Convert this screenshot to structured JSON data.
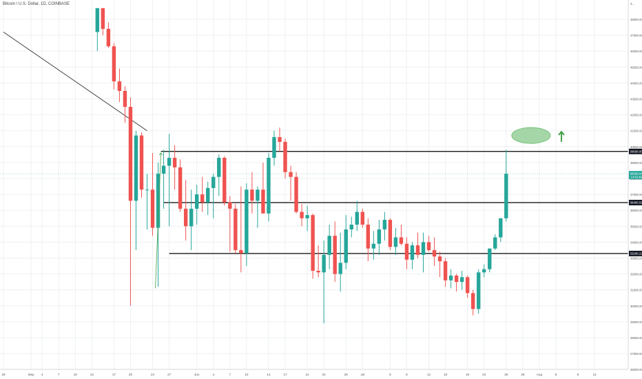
{
  "window": {
    "symbol_title": "Bitcoin / U.S. Dollar, 1D, COINBASE"
  },
  "chart_data": {
    "type": "candlestick",
    "title": "Bitcoin / U.S. Dollar, 1D, COINBASE",
    "xlabel": "",
    "ylabel": "",
    "ylim": [
      25000,
      48700
    ],
    "grid": true,
    "colors": {
      "up": "#26a69a",
      "down": "#ef5350",
      "grid": "#eef0f3",
      "line": "#000000",
      "trend": "#333333",
      "target": "#a5d6a7",
      "arrow": "#43a047"
    },
    "y_ticks": [
      "48000.00",
      "47000.00",
      "46000.00",
      "45000.00",
      "44000.00",
      "43000.00",
      "42000.00",
      "41000.00",
      "40000.00",
      "39000.00",
      "38000.00",
      "37000.00",
      "36000.00",
      "35000.00",
      "34000.00",
      "33000.00",
      "32000.00",
      "31000.00",
      "30000.00",
      "29000.00",
      "28000.00",
      "27000.00",
      "26000.00"
    ],
    "x_ticks": [
      {
        "day": 0,
        "label": "26"
      },
      {
        "day": 5,
        "label": "May"
      },
      {
        "day": 7,
        "label": "4"
      },
      {
        "day": 10,
        "label": "7"
      },
      {
        "day": 13,
        "label": "10"
      },
      {
        "day": 16,
        "label": "13"
      },
      {
        "day": 20,
        "label": "17"
      },
      {
        "day": 23,
        "label": "20"
      },
      {
        "day": 27,
        "label": "24"
      },
      {
        "day": 30,
        "label": "27"
      },
      {
        "day": 35,
        "label": "Jun"
      },
      {
        "day": 38,
        "label": "4"
      },
      {
        "day": 41,
        "label": "7"
      },
      {
        "day": 44,
        "label": "10"
      },
      {
        "day": 48,
        "label": "14"
      },
      {
        "day": 51,
        "label": "17"
      },
      {
        "day": 55,
        "label": "21"
      },
      {
        "day": 58,
        "label": "24"
      },
      {
        "day": 62,
        "label": "28"
      },
      {
        "day": 65,
        "label": "Jul"
      },
      {
        "day": 70,
        "label": "5"
      },
      {
        "day": 73,
        "label": "8"
      },
      {
        "day": 77,
        "label": "12"
      },
      {
        "day": 80,
        "label": "15"
      },
      {
        "day": 84,
        "label": "19"
      },
      {
        "day": 87,
        "label": "22"
      },
      {
        "day": 91,
        "label": "26"
      },
      {
        "day": 94,
        "label": "29"
      },
      {
        "day": 97,
        "label": "Aug"
      },
      {
        "day": 100,
        "label": "5"
      },
      {
        "day": 104,
        "label": "9"
      },
      {
        "day": 107,
        "label": "12"
      }
    ],
    "candles": [
      {
        "day": 17,
        "o": 47200,
        "h": 48700,
        "l": 46000,
        "c": 48700
      },
      {
        "day": 18,
        "o": 48700,
        "h": 48700,
        "l": 47000,
        "c": 47400
      },
      {
        "day": 19,
        "o": 47400,
        "h": 47800,
        "l": 46200,
        "c": 46300
      },
      {
        "day": 20,
        "o": 46300,
        "h": 46500,
        "l": 43600,
        "c": 44100
      },
      {
        "day": 21,
        "o": 44100,
        "h": 44900,
        "l": 42800,
        "c": 43500
      },
      {
        "day": 22,
        "o": 43500,
        "h": 43800,
        "l": 41500,
        "c": 42500
      },
      {
        "day": 23,
        "o": 42500,
        "h": 43100,
        "l": 30000,
        "c": 36600
      },
      {
        "day": 24,
        "o": 36600,
        "h": 41000,
        "l": 33500,
        "c": 40700
      },
      {
        "day": 25,
        "o": 40700,
        "h": 40900,
        "l": 36800,
        "c": 37300
      },
      {
        "day": 26,
        "o": 37300,
        "h": 38300,
        "l": 34800,
        "c": 37300
      },
      {
        "day": 27,
        "o": 37300,
        "h": 39600,
        "l": 34400,
        "c": 34900
      },
      {
        "day": 28,
        "o": 34900,
        "h": 39000,
        "l": 31200,
        "c": 38300
      },
      {
        "day": 29,
        "o": 38300,
        "h": 39800,
        "l": 36100,
        "c": 38800
      },
      {
        "day": 30,
        "o": 38800,
        "h": 40800,
        "l": 35000,
        "c": 39300
      },
      {
        "day": 31,
        "o": 39300,
        "h": 40100,
        "l": 37300,
        "c": 38700
      },
      {
        "day": 32,
        "o": 38700,
        "h": 39200,
        "l": 35900,
        "c": 36100
      },
      {
        "day": 33,
        "o": 36100,
        "h": 37900,
        "l": 34100,
        "c": 35000
      },
      {
        "day": 34,
        "o": 35000,
        "h": 37300,
        "l": 33500,
        "c": 36100
      },
      {
        "day": 35,
        "o": 36100,
        "h": 37600,
        "l": 35100,
        "c": 37000
      },
      {
        "day": 36,
        "o": 37000,
        "h": 38100,
        "l": 35900,
        "c": 36500
      },
      {
        "day": 37,
        "o": 36500,
        "h": 37800,
        "l": 35700,
        "c": 37400
      },
      {
        "day": 38,
        "o": 37400,
        "h": 38300,
        "l": 35500,
        "c": 38100
      },
      {
        "day": 39,
        "o": 38100,
        "h": 39500,
        "l": 36900,
        "c": 39300
      },
      {
        "day": 40,
        "o": 39300,
        "h": 39400,
        "l": 36300,
        "c": 36500
      },
      {
        "day": 41,
        "o": 36500,
        "h": 36900,
        "l": 33400,
        "c": 36100
      },
      {
        "day": 42,
        "o": 36100,
        "h": 36400,
        "l": 33300,
        "c": 33500
      },
      {
        "day": 43,
        "o": 33500,
        "h": 37500,
        "l": 32100,
        "c": 33300
      },
      {
        "day": 44,
        "o": 33300,
        "h": 37700,
        "l": 32500,
        "c": 37300
      },
      {
        "day": 45,
        "o": 37300,
        "h": 38400,
        "l": 35800,
        "c": 36600
      },
      {
        "day": 46,
        "o": 36600,
        "h": 37500,
        "l": 34900,
        "c": 37300
      },
      {
        "day": 47,
        "o": 37300,
        "h": 39000,
        "l": 35800,
        "c": 35800
      },
      {
        "day": 48,
        "o": 35800,
        "h": 39600,
        "l": 35300,
        "c": 39300
      },
      {
        "day": 49,
        "o": 39300,
        "h": 41000,
        "l": 38800,
        "c": 40600
      },
      {
        "day": 50,
        "o": 40600,
        "h": 41200,
        "l": 39700,
        "c": 40300
      },
      {
        "day": 51,
        "o": 40300,
        "h": 40500,
        "l": 38000,
        "c": 38400
      },
      {
        "day": 52,
        "o": 38400,
        "h": 38800,
        "l": 36600,
        "c": 38100
      },
      {
        "day": 53,
        "o": 38100,
        "h": 38400,
        "l": 35800,
        "c": 35900
      },
      {
        "day": 54,
        "o": 35900,
        "h": 36400,
        "l": 35000,
        "c": 35500
      },
      {
        "day": 55,
        "o": 35500,
        "h": 36300,
        "l": 34700,
        "c": 35700
      },
      {
        "day": 56,
        "o": 35700,
        "h": 35800,
        "l": 31700,
        "c": 32200
      },
      {
        "day": 57,
        "o": 32200,
        "h": 33800,
        "l": 31800,
        "c": 32100
      },
      {
        "day": 58,
        "o": 32100,
        "h": 34100,
        "l": 28900,
        "c": 33200
      },
      {
        "day": 59,
        "o": 33200,
        "h": 35100,
        "l": 32300,
        "c": 34400
      },
      {
        "day": 60,
        "o": 34400,
        "h": 35300,
        "l": 31500,
        "c": 32000
      },
      {
        "day": 61,
        "o": 32000,
        "h": 34600,
        "l": 30900,
        "c": 32700
      },
      {
        "day": 62,
        "o": 32700,
        "h": 35700,
        "l": 32300,
        "c": 34800
      },
      {
        "day": 63,
        "o": 34800,
        "h": 35600,
        "l": 34300,
        "c": 35100
      },
      {
        "day": 64,
        "o": 35100,
        "h": 36600,
        "l": 34700,
        "c": 35900
      },
      {
        "day": 65,
        "o": 35900,
        "h": 36100,
        "l": 34900,
        "c": 35100
      },
      {
        "day": 66,
        "o": 35100,
        "h": 35500,
        "l": 32800,
        "c": 33600
      },
      {
        "day": 67,
        "o": 33600,
        "h": 34700,
        "l": 32900,
        "c": 33900
      },
      {
        "day": 68,
        "o": 33900,
        "h": 35400,
        "l": 33200,
        "c": 34800
      },
      {
        "day": 69,
        "o": 34800,
        "h": 35900,
        "l": 34100,
        "c": 35400
      },
      {
        "day": 70,
        "o": 35400,
        "h": 35500,
        "l": 33500,
        "c": 33700
      },
      {
        "day": 71,
        "o": 33700,
        "h": 34900,
        "l": 33200,
        "c": 34300
      },
      {
        "day": 72,
        "o": 34300,
        "h": 35100,
        "l": 33800,
        "c": 33900
      },
      {
        "day": 73,
        "o": 33900,
        "h": 34300,
        "l": 32300,
        "c": 32900
      },
      {
        "day": 74,
        "o": 32900,
        "h": 34000,
        "l": 32300,
        "c": 33800
      },
      {
        "day": 75,
        "o": 33800,
        "h": 34600,
        "l": 33000,
        "c": 33200
      },
      {
        "day": 76,
        "o": 33200,
        "h": 34600,
        "l": 32100,
        "c": 34000
      },
      {
        "day": 77,
        "o": 34000,
        "h": 34400,
        "l": 33400,
        "c": 33500
      },
      {
        "day": 78,
        "o": 33500,
        "h": 34300,
        "l": 32500,
        "c": 33100
      },
      {
        "day": 79,
        "o": 33100,
        "h": 33400,
        "l": 31800,
        "c": 32800
      },
      {
        "day": 80,
        "o": 32800,
        "h": 33000,
        "l": 31200,
        "c": 31600
      },
      {
        "day": 81,
        "o": 31600,
        "h": 32300,
        "l": 31100,
        "c": 31900
      },
      {
        "day": 82,
        "o": 31900,
        "h": 32000,
        "l": 30900,
        "c": 31500
      },
      {
        "day": 83,
        "o": 31500,
        "h": 32200,
        "l": 31000,
        "c": 31800
      },
      {
        "day": 84,
        "o": 31800,
        "h": 31900,
        "l": 30500,
        "c": 30800
      },
      {
        "day": 85,
        "o": 30800,
        "h": 31000,
        "l": 29400,
        "c": 29800
      },
      {
        "day": 86,
        "o": 29800,
        "h": 32300,
        "l": 29500,
        "c": 32100
      },
      {
        "day": 87,
        "o": 32100,
        "h": 32600,
        "l": 31800,
        "c": 32300
      },
      {
        "day": 88,
        "o": 32300,
        "h": 33600,
        "l": 32100,
        "c": 33600
      },
      {
        "day": 89,
        "o": 33600,
        "h": 34500,
        "l": 33500,
        "c": 34300
      },
      {
        "day": 90,
        "o": 34300,
        "h": 35500,
        "l": 34000,
        "c": 35500
      },
      {
        "day": 91,
        "o": 35500,
        "h": 39800,
        "l": 35300,
        "c": 38300
      }
    ],
    "levels": [
      {
        "price": 39698.0,
        "label": "39698.00",
        "from_day": 28.5
      },
      {
        "price": 36485.51,
        "label": "36485.51",
        "from_day": 29
      },
      {
        "price": 33285.22,
        "label": "33285.22",
        "from_day": 30
      }
    ],
    "current_price": {
      "price": 38299.04,
      "label": "38299.04",
      "countdown": "14:53:46"
    },
    "top_right_label": "4...",
    "trendline": {
      "from": {
        "day": 0,
        "price": 47200
      },
      "to": {
        "day": 26,
        "price": 41000
      }
    },
    "annotation_arrow": {
      "from": {
        "day": 27.5,
        "price": 31100
      },
      "to": {
        "day": 28.5,
        "price": 39600
      }
    },
    "target_zone": {
      "center_day": 95.5,
      "center_price": 40700,
      "half_width_days": 3.5,
      "half_height_price": 500
    },
    "up_arrow": {
      "day": 101,
      "price_low": 40300,
      "price_high": 40900
    }
  }
}
